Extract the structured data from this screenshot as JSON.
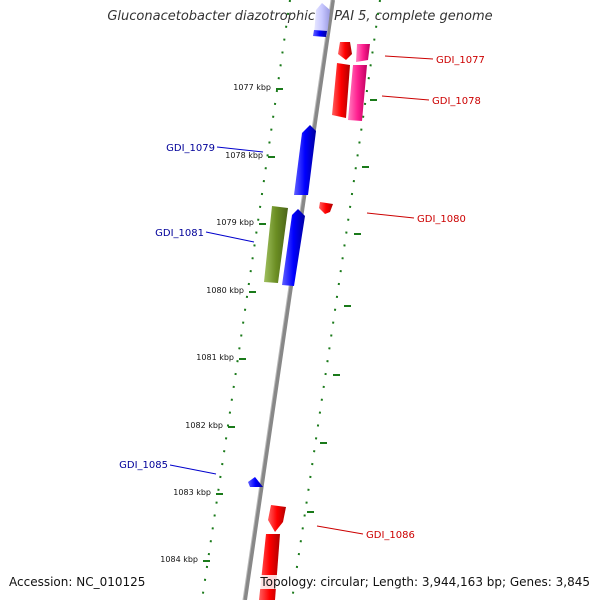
{
  "title": "Gluconacetobacter diazotrophicus PAI 5, complete genome",
  "accession": "Accession: NC_010125",
  "summary": "Topology: circular; Length: 3,944,163 bp; Genes: 3,845",
  "colors": {
    "background": "#ffffff",
    "backbone": "#888888",
    "ticks": "#1a7a1a",
    "forward_gene": "#ff0000",
    "forward_gene_alt": "#ff2090",
    "reverse_gene": "#0000ff",
    "reverse_gene_faded": "#c8c8ff",
    "other_gene": "#6b8e23",
    "forward_label": "#cc0000",
    "reverse_label": "#000099",
    "tick_label": "#111111"
  },
  "ticks": [
    "1077 kbp",
    "1078 kbp",
    "1079 kbp",
    "1080 kbp",
    "1081 kbp",
    "1082 kbp",
    "1083 kbp",
    "1084 kbp"
  ],
  "gene_labels": {
    "forward": [
      "GDI_1077",
      "GDI_1078",
      "GDI_1080",
      "GDI_1086"
    ],
    "reverse": [
      "GDI_1079",
      "GDI_1081",
      "GDI_1085"
    ]
  }
}
